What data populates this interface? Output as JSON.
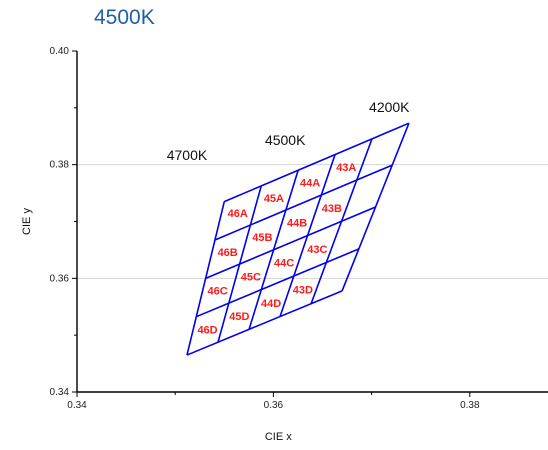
{
  "title": "4500K",
  "chart_data": {
    "type": "scatter",
    "title": "4500K",
    "xlabel": "CIE x",
    "ylabel": "CIE y",
    "xlim": [
      0.34,
      0.39
    ],
    "ylim": [
      0.34,
      0.4
    ],
    "x_ticks": [
      "0.34",
      "0.36",
      "0.38"
    ],
    "y_ticks": [
      "0.34",
      "0.36",
      "0.38",
      "0.40"
    ],
    "grid": "horizontal",
    "colors": {
      "grid_lines": "#0000ee",
      "bin_labels": "#ff1a1a"
    },
    "cct_labels": [
      {
        "text": "4700K",
        "x": 0.3512,
        "y": 0.3808
      },
      {
        "text": "4500K",
        "x": 0.3612,
        "y": 0.3835
      },
      {
        "text": "4200K",
        "x": 0.3718,
        "y": 0.3893
      }
    ],
    "grid_mesh": {
      "rows": 4,
      "cols": 5,
      "corners": {
        "top_left": [
          0.355,
          0.3735
        ],
        "top_right": [
          0.3738,
          0.3873
        ],
        "bottom_left": [
          0.3512,
          0.3465
        ],
        "bottom_right": [
          0.367,
          0.3578
        ]
      }
    },
    "bins": [
      {
        "label": "46A",
        "row": 0,
        "col": 0
      },
      {
        "label": "45A",
        "row": 0,
        "col": 1
      },
      {
        "label": "44A",
        "row": 0,
        "col": 2
      },
      {
        "label": "43A",
        "row": 0,
        "col": 3
      },
      {
        "label": "46B",
        "row": 1,
        "col": 0
      },
      {
        "label": "45B",
        "row": 1,
        "col": 1
      },
      {
        "label": "44B",
        "row": 1,
        "col": 2
      },
      {
        "label": "43B",
        "row": 1,
        "col": 3
      },
      {
        "label": "46C",
        "row": 2,
        "col": 0
      },
      {
        "label": "45C",
        "row": 2,
        "col": 1
      },
      {
        "label": "44C",
        "row": 2,
        "col": 2
      },
      {
        "label": "43C",
        "row": 2,
        "col": 3
      },
      {
        "label": "46D",
        "row": 3,
        "col": 0
      },
      {
        "label": "45D",
        "row": 3,
        "col": 1
      },
      {
        "label": "44D",
        "row": 3,
        "col": 2
      },
      {
        "label": "43D",
        "row": 3,
        "col": 3
      }
    ]
  }
}
